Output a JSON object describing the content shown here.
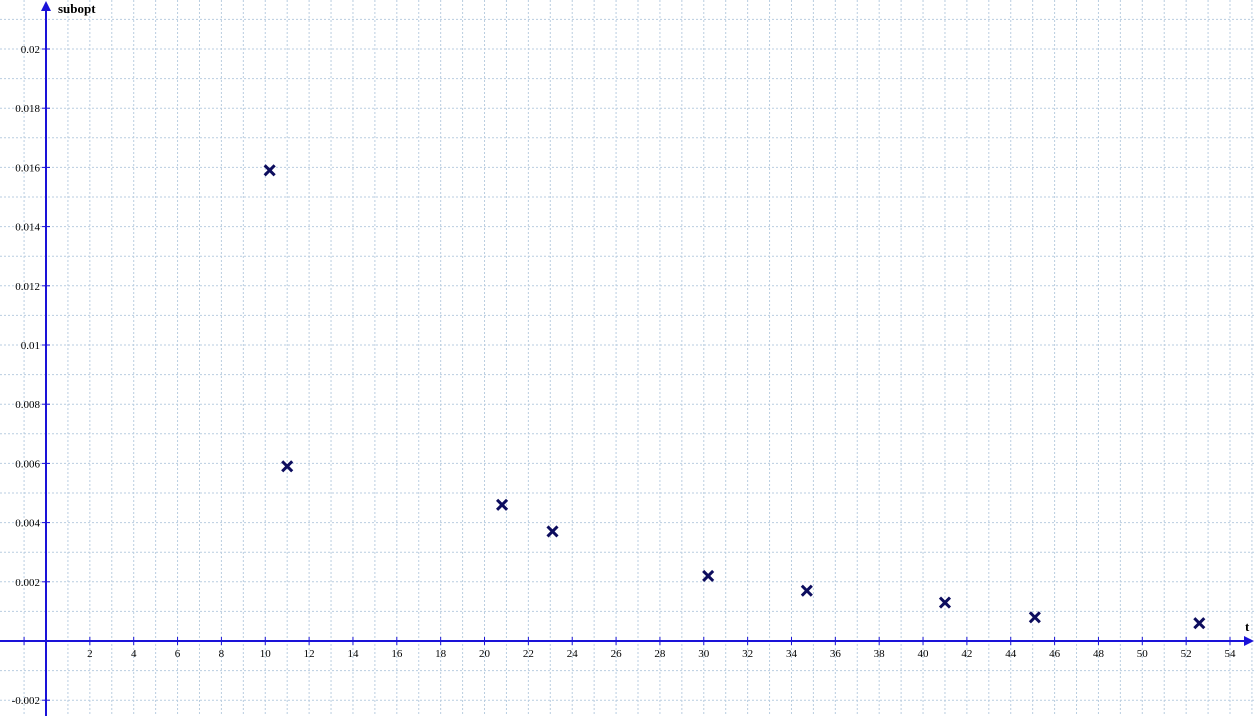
{
  "chart_data": {
    "type": "scatter",
    "title": "",
    "xlabel": "t",
    "ylabel": "subopt",
    "xlim": [
      -2,
      55.5
    ],
    "ylim": [
      -0.0025,
      0.0215
    ],
    "grid": true,
    "marker": "x",
    "colors": {
      "axis": "#1a12d8",
      "marker": "#0d0d5e",
      "grid": "#b9cde0"
    },
    "x_ticks": [
      2,
      4,
      6,
      8,
      10,
      12,
      14,
      16,
      18,
      20,
      22,
      24,
      26,
      28,
      30,
      32,
      34,
      36,
      38,
      40,
      42,
      44,
      46,
      48,
      50,
      52,
      54
    ],
    "x_tick_labels": [
      "2",
      "4",
      "6",
      "8",
      "10",
      "12",
      "14",
      "16",
      "18",
      "20",
      "22",
      "24",
      "26",
      "28",
      "30",
      "32",
      "34",
      "36",
      "38",
      "40",
      "42",
      "44",
      "46",
      "48",
      "50",
      "52",
      "54"
    ],
    "y_ticks": [
      -0.002,
      0.002,
      0.004,
      0.006,
      0.008,
      0.01,
      0.012,
      0.014,
      0.016,
      0.018,
      0.02
    ],
    "y_tick_labels": [
      "-0.002",
      "0.002",
      "0.004",
      "0.006",
      "0.008",
      "0.01",
      "0.012",
      "0.014",
      "0.016",
      "0.018",
      "0.02"
    ],
    "points": [
      {
        "x": 10.2,
        "y": 0.0159
      },
      {
        "x": 11.0,
        "y": 0.0059
      },
      {
        "x": 20.8,
        "y": 0.0046
      },
      {
        "x": 23.1,
        "y": 0.0037
      },
      {
        "x": 30.2,
        "y": 0.0022
      },
      {
        "x": 34.7,
        "y": 0.0017
      },
      {
        "x": 41.0,
        "y": 0.0013
      },
      {
        "x": 45.1,
        "y": 0.0008
      },
      {
        "x": 52.6,
        "y": 0.0006
      }
    ]
  }
}
